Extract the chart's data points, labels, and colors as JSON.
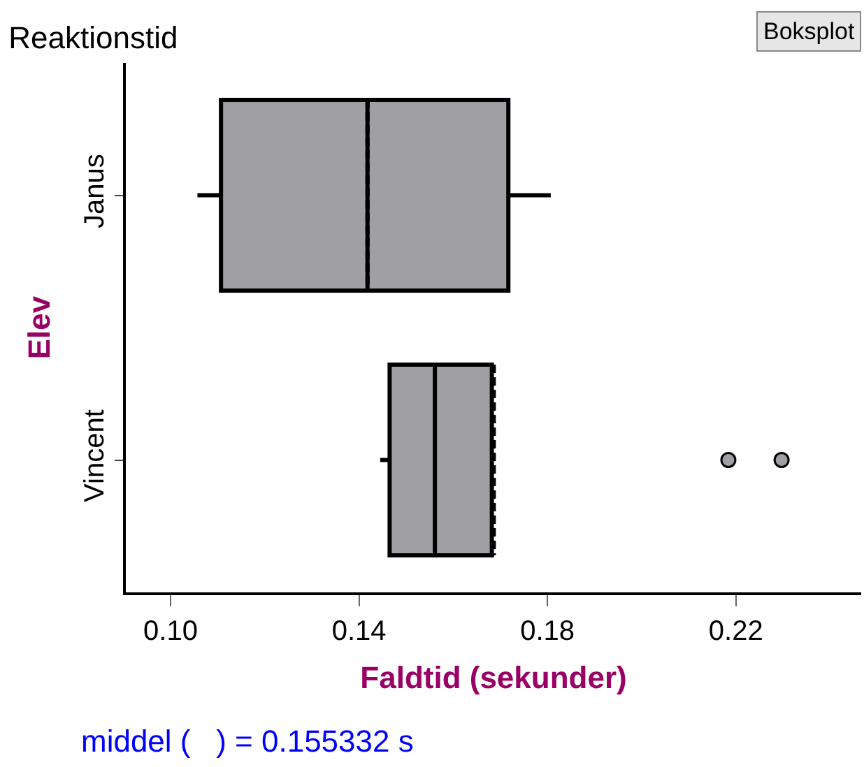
{
  "chart_data": {
    "type": "box",
    "title": "Reaktionstid",
    "xlabel": "Faldtid (sekunder)",
    "ylabel": "Elev",
    "orientation": "horizontal",
    "categories": [
      "Janus",
      "Vincent"
    ],
    "boxes": [
      {
        "low": 0.1057,
        "q1": 0.1107,
        "median": 0.1418,
        "q3": 0.1717,
        "high": 0.1807,
        "mean": 0.1418
      },
      {
        "low": 0.1445,
        "q1": 0.1465,
        "median": 0.1561,
        "q3": 0.1682,
        "high": 0.1682,
        "mean": 0.1686,
        "outliers": [
          0.2184,
          0.2297
        ]
      }
    ],
    "color": "#a0a0a4",
    "xlim": [
      0.0905,
      0.2466
    ],
    "xticks": [
      {
        "value": 0.1,
        "label": "0.10"
      },
      {
        "value": 0.14,
        "label": "0.14"
      },
      {
        "value": 0.18,
        "label": "0.18"
      },
      {
        "value": 0.22,
        "label": "0.22"
      }
    ],
    "annotations": [
      "Boksplot",
      "middel (   ) = 0.155332 s"
    ]
  }
}
